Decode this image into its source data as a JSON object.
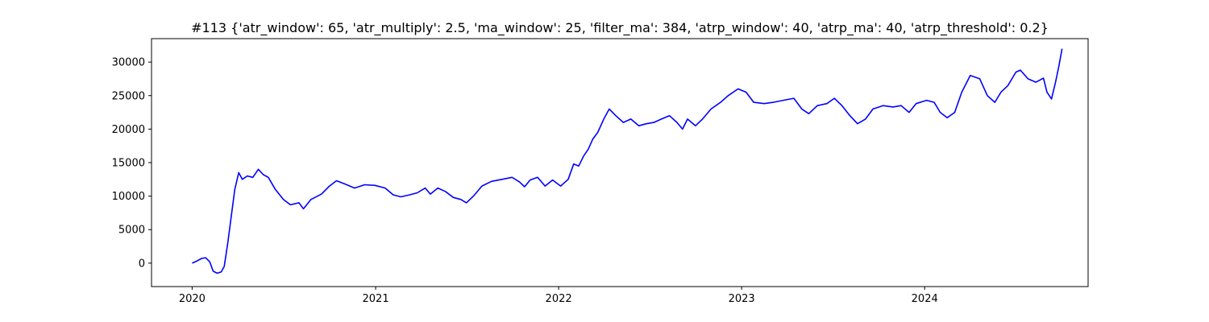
{
  "chart_data": {
    "type": "line",
    "title": "#113 {'atr_window': 65, 'atr_multiply': 2.5, 'ma_window': 25, 'filter_ma': 384, 'atrp_window': 40, 'atrp_ma': 40, 'atrp_threshold': 0.2}",
    "xlabel": "",
    "ylabel": "",
    "x_axis": "date",
    "xlim": [
      "2019-10-12",
      "2024-11-22"
    ],
    "ylim": [
      -3500,
      33500
    ],
    "xticks": [
      {
        "value": "2020-01-01",
        "label": "2020"
      },
      {
        "value": "2021-01-01",
        "label": "2021"
      },
      {
        "value": "2022-01-01",
        "label": "2022"
      },
      {
        "value": "2023-01-01",
        "label": "2023"
      },
      {
        "value": "2024-01-01",
        "label": "2024"
      }
    ],
    "yticks": [
      {
        "value": 0,
        "label": "0"
      },
      {
        "value": 5000,
        "label": "5000"
      },
      {
        "value": 10000,
        "label": "10000"
      },
      {
        "value": 15000,
        "label": "15000"
      },
      {
        "value": 20000,
        "label": "20000"
      },
      {
        "value": 25000,
        "label": "25000"
      },
      {
        "value": 30000,
        "label": "30000"
      }
    ],
    "grid": false,
    "legend": "none",
    "series": [
      {
        "color": "#0000ff",
        "points": [
          [
            "2020-01-01",
            0
          ],
          [
            "2020-01-10",
            300
          ],
          [
            "2020-01-20",
            700
          ],
          [
            "2020-01-28",
            800
          ],
          [
            "2020-02-05",
            200
          ],
          [
            "2020-02-12",
            -1200
          ],
          [
            "2020-02-20",
            -1500
          ],
          [
            "2020-02-28",
            -1300
          ],
          [
            "2020-03-05",
            -500
          ],
          [
            "2020-03-12",
            3000
          ],
          [
            "2020-03-20",
            7500
          ],
          [
            "2020-03-26",
            11000
          ],
          [
            "2020-04-03",
            13500
          ],
          [
            "2020-04-10",
            12500
          ],
          [
            "2020-04-20",
            13000
          ],
          [
            "2020-05-01",
            12800
          ],
          [
            "2020-05-12",
            14000
          ],
          [
            "2020-05-22",
            13200
          ],
          [
            "2020-06-01",
            12800
          ],
          [
            "2020-06-15",
            11000
          ],
          [
            "2020-07-01",
            9500
          ],
          [
            "2020-07-15",
            8700
          ],
          [
            "2020-08-01",
            9000
          ],
          [
            "2020-08-10",
            8100
          ],
          [
            "2020-08-25",
            9500
          ],
          [
            "2020-09-15",
            10300
          ],
          [
            "2020-10-01",
            11500
          ],
          [
            "2020-10-15",
            12300
          ],
          [
            "2020-11-01",
            11800
          ],
          [
            "2020-11-20",
            11200
          ],
          [
            "2020-12-10",
            11700
          ],
          [
            "2020-12-31",
            11600
          ],
          [
            "2021-01-20",
            11200
          ],
          [
            "2021-02-05",
            10200
          ],
          [
            "2021-02-20",
            9900
          ],
          [
            "2021-03-10",
            10200
          ],
          [
            "2021-03-25",
            10500
          ],
          [
            "2021-04-10",
            11200
          ],
          [
            "2021-04-20",
            10300
          ],
          [
            "2021-05-05",
            11200
          ],
          [
            "2021-05-20",
            10700
          ],
          [
            "2021-06-05",
            9800
          ],
          [
            "2021-06-20",
            9500
          ],
          [
            "2021-07-01",
            9000
          ],
          [
            "2021-07-15",
            10000
          ],
          [
            "2021-08-01",
            11500
          ],
          [
            "2021-08-20",
            12200
          ],
          [
            "2021-09-10",
            12500
          ],
          [
            "2021-09-30",
            12800
          ],
          [
            "2021-10-15",
            12100
          ],
          [
            "2021-10-25",
            11400
          ],
          [
            "2021-11-05",
            12400
          ],
          [
            "2021-11-20",
            12800
          ],
          [
            "2021-12-05",
            11500
          ],
          [
            "2021-12-20",
            12400
          ],
          [
            "2022-01-05",
            11500
          ],
          [
            "2022-01-20",
            12500
          ],
          [
            "2022-01-31",
            14800
          ],
          [
            "2022-02-10",
            14500
          ],
          [
            "2022-02-20",
            16000
          ],
          [
            "2022-03-01",
            17000
          ],
          [
            "2022-03-10",
            18500
          ],
          [
            "2022-03-20",
            19500
          ],
          [
            "2022-04-01",
            21500
          ],
          [
            "2022-04-12",
            23000
          ],
          [
            "2022-04-25",
            22000
          ],
          [
            "2022-05-10",
            21000
          ],
          [
            "2022-05-25",
            21500
          ],
          [
            "2022-06-10",
            20500
          ],
          [
            "2022-06-25",
            20800
          ],
          [
            "2022-07-10",
            21000
          ],
          [
            "2022-07-25",
            21500
          ],
          [
            "2022-08-10",
            22000
          ],
          [
            "2022-08-25",
            21000
          ],
          [
            "2022-09-05",
            20000
          ],
          [
            "2022-09-15",
            21500
          ],
          [
            "2022-10-01",
            20500
          ],
          [
            "2022-10-15",
            21500
          ],
          [
            "2022-11-01",
            23000
          ],
          [
            "2022-11-20",
            24000
          ],
          [
            "2022-12-05",
            25000
          ],
          [
            "2022-12-25",
            26000
          ],
          [
            "2023-01-10",
            25500
          ],
          [
            "2023-01-25",
            24000
          ],
          [
            "2023-02-15",
            23800
          ],
          [
            "2023-03-05",
            24000
          ],
          [
            "2023-03-25",
            24300
          ],
          [
            "2023-04-15",
            24600
          ],
          [
            "2023-05-01",
            23000
          ],
          [
            "2023-05-15",
            22300
          ],
          [
            "2023-06-01",
            23500
          ],
          [
            "2023-06-20",
            23800
          ],
          [
            "2023-07-05",
            24600
          ],
          [
            "2023-07-20",
            23500
          ],
          [
            "2023-08-05",
            22000
          ],
          [
            "2023-08-20",
            20800
          ],
          [
            "2023-09-05",
            21500
          ],
          [
            "2023-09-20",
            23000
          ],
          [
            "2023-10-10",
            23500
          ],
          [
            "2023-10-30",
            23300
          ],
          [
            "2023-11-15",
            23500
          ],
          [
            "2023-12-01",
            22500
          ],
          [
            "2023-12-15",
            23800
          ],
          [
            "2024-01-05",
            24300
          ],
          [
            "2024-01-20",
            24000
          ],
          [
            "2024-02-01",
            22500
          ],
          [
            "2024-02-15",
            21700
          ],
          [
            "2024-03-01",
            22500
          ],
          [
            "2024-03-15",
            25500
          ],
          [
            "2024-04-01",
            28000
          ],
          [
            "2024-04-20",
            27500
          ],
          [
            "2024-05-05",
            25000
          ],
          [
            "2024-05-20",
            24000
          ],
          [
            "2024-06-01",
            25500
          ],
          [
            "2024-06-15",
            26500
          ],
          [
            "2024-07-01",
            28500
          ],
          [
            "2024-07-10",
            28800
          ],
          [
            "2024-07-25",
            27500
          ],
          [
            "2024-08-10",
            27000
          ],
          [
            "2024-08-25",
            27600
          ],
          [
            "2024-09-01",
            25500
          ],
          [
            "2024-09-10",
            24500
          ],
          [
            "2024-09-18",
            27000
          ],
          [
            "2024-09-25",
            29500
          ],
          [
            "2024-10-01",
            32000
          ]
        ]
      }
    ]
  }
}
